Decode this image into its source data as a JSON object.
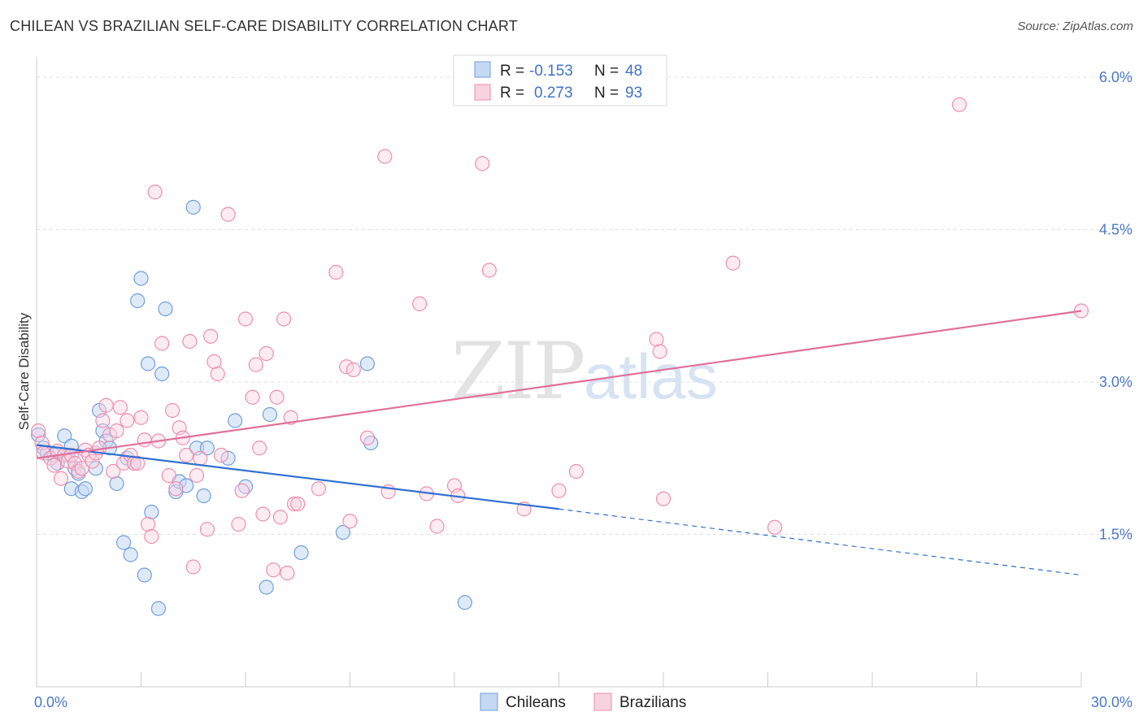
{
  "title": "CHILEAN VS BRAZILIAN SELF-CARE DISABILITY CORRELATION CHART",
  "source": "Source: ZipAtlas.com",
  "watermark": {
    "part1": "ZIP",
    "part2": "atlas"
  },
  "legend": {
    "rows": [
      {
        "r_label": "R =",
        "r_value": "-0.153",
        "n_label": "N =",
        "n_value": "48"
      },
      {
        "r_label": "R =",
        "r_value": "0.273",
        "n_label": "N =",
        "n_value": "93"
      }
    ]
  },
  "colors": {
    "chileans": "#6f9ee0",
    "chileans_fill": "#c5d8f4",
    "chileans_line": "#2f6fd0",
    "brazilians": "#ee8eb0",
    "brazilians_fill": "#f9d2e0",
    "brazilians_line": "#e0709a"
  },
  "chart_data": {
    "type": "scatter",
    "title": "CHILEAN VS BRAZILIAN SELF-CARE DISABILITY CORRELATION CHART",
    "xlabel": "",
    "ylabel": "Self-Care Disability",
    "xlim": [
      0,
      30
    ],
    "ylim": [
      0,
      6.2
    ],
    "x_tick_labels": [
      {
        "value": 0,
        "label": "0.0%"
      },
      {
        "value": 30,
        "label": "30.0%"
      }
    ],
    "y_tick_labels": [
      {
        "value": 1.5,
        "label": "1.5%"
      },
      {
        "value": 3.0,
        "label": "3.0%"
      },
      {
        "value": 4.5,
        "label": "4.5%"
      },
      {
        "value": 6.0,
        "label": "6.0%"
      }
    ],
    "grid": true,
    "legend_position": "top-center",
    "series": [
      {
        "name": "Chileans",
        "r": -0.153,
        "n": 48,
        "trend": {
          "x0": 0,
          "y0": 2.38,
          "x1": 15,
          "y1": 1.75,
          "dashed_to_x": 30,
          "dashed_to_y": 1.1
        },
        "points": [
          [
            0.05,
            2.48
          ],
          [
            0.2,
            2.35
          ],
          [
            0.3,
            2.3
          ],
          [
            0.5,
            2.28
          ],
          [
            0.6,
            2.2
          ],
          [
            0.8,
            2.47
          ],
          [
            0.9,
            2.28
          ],
          [
            1.0,
            2.37
          ],
          [
            1.0,
            1.95
          ],
          [
            1.1,
            2.15
          ],
          [
            1.2,
            2.1
          ],
          [
            1.3,
            1.92
          ],
          [
            1.4,
            1.95
          ],
          [
            1.7,
            2.15
          ],
          [
            1.8,
            2.72
          ],
          [
            1.9,
            2.52
          ],
          [
            2.0,
            2.42
          ],
          [
            2.1,
            2.35
          ],
          [
            2.3,
            2.0
          ],
          [
            2.5,
            1.42
          ],
          [
            2.6,
            2.25
          ],
          [
            2.7,
            1.3
          ],
          [
            2.8,
            2.2
          ],
          [
            2.9,
            3.8
          ],
          [
            3.0,
            4.02
          ],
          [
            3.1,
            1.1
          ],
          [
            3.2,
            3.18
          ],
          [
            3.3,
            1.72
          ],
          [
            3.5,
            0.77
          ],
          [
            3.6,
            3.08
          ],
          [
            3.7,
            3.72
          ],
          [
            4.0,
            1.92
          ],
          [
            4.1,
            2.02
          ],
          [
            4.3,
            1.98
          ],
          [
            4.5,
            4.72
          ],
          [
            4.6,
            2.35
          ],
          [
            4.8,
            1.88
          ],
          [
            4.9,
            2.35
          ],
          [
            5.5,
            2.25
          ],
          [
            5.7,
            2.62
          ],
          [
            6.0,
            1.97
          ],
          [
            6.7,
            2.68
          ],
          [
            6.6,
            0.98
          ],
          [
            7.6,
            1.32
          ],
          [
            8.8,
            1.52
          ],
          [
            9.5,
            3.18
          ],
          [
            9.6,
            2.4
          ],
          [
            12.3,
            0.83
          ]
        ]
      },
      {
        "name": "Brazilians",
        "r": 0.273,
        "n": 93,
        "trend": {
          "x0": 0,
          "y0": 2.25,
          "x1": 30,
          "y1": 3.7
        },
        "points": [
          [
            0.05,
            2.52
          ],
          [
            0.15,
            2.4
          ],
          [
            0.2,
            2.3
          ],
          [
            0.4,
            2.25
          ],
          [
            0.5,
            2.18
          ],
          [
            0.6,
            2.32
          ],
          [
            0.7,
            2.05
          ],
          [
            0.8,
            2.28
          ],
          [
            0.9,
            2.22
          ],
          [
            1.0,
            2.28
          ],
          [
            1.1,
            2.2
          ],
          [
            1.2,
            2.12
          ],
          [
            1.3,
            2.15
          ],
          [
            1.4,
            2.33
          ],
          [
            1.5,
            2.28
          ],
          [
            1.6,
            2.22
          ],
          [
            1.7,
            2.3
          ],
          [
            1.8,
            2.35
          ],
          [
            1.9,
            2.62
          ],
          [
            2.0,
            2.77
          ],
          [
            2.1,
            2.48
          ],
          [
            2.2,
            2.12
          ],
          [
            2.3,
            2.52
          ],
          [
            2.4,
            2.75
          ],
          [
            2.5,
            2.2
          ],
          [
            2.6,
            2.62
          ],
          [
            2.7,
            2.28
          ],
          [
            2.8,
            2.2
          ],
          [
            2.9,
            2.2
          ],
          [
            3.0,
            2.65
          ],
          [
            3.1,
            2.43
          ],
          [
            3.2,
            1.6
          ],
          [
            3.3,
            1.48
          ],
          [
            3.4,
            4.87
          ],
          [
            3.5,
            2.42
          ],
          [
            3.6,
            3.38
          ],
          [
            3.8,
            2.08
          ],
          [
            3.9,
            2.72
          ],
          [
            4.0,
            1.95
          ],
          [
            4.1,
            2.55
          ],
          [
            4.2,
            2.45
          ],
          [
            4.3,
            2.28
          ],
          [
            4.4,
            3.4
          ],
          [
            4.5,
            1.18
          ],
          [
            4.6,
            2.08
          ],
          [
            4.7,
            2.25
          ],
          [
            4.9,
            1.55
          ],
          [
            5.0,
            3.45
          ],
          [
            5.1,
            3.2
          ],
          [
            5.2,
            3.08
          ],
          [
            5.3,
            2.28
          ],
          [
            5.5,
            4.65
          ],
          [
            5.8,
            1.6
          ],
          [
            5.9,
            1.93
          ],
          [
            6.0,
            3.62
          ],
          [
            6.2,
            2.85
          ],
          [
            6.3,
            3.17
          ],
          [
            6.4,
            2.35
          ],
          [
            6.5,
            1.7
          ],
          [
            6.6,
            3.28
          ],
          [
            6.8,
            1.15
          ],
          [
            6.9,
            2.85
          ],
          [
            7.0,
            1.67
          ],
          [
            7.1,
            3.62
          ],
          [
            7.2,
            1.12
          ],
          [
            7.3,
            2.65
          ],
          [
            7.4,
            1.8
          ],
          [
            7.5,
            1.8
          ],
          [
            8.1,
            1.95
          ],
          [
            8.6,
            4.08
          ],
          [
            8.9,
            3.15
          ],
          [
            9.0,
            1.63
          ],
          [
            9.1,
            3.12
          ],
          [
            9.5,
            2.45
          ],
          [
            10.0,
            5.22
          ],
          [
            10.1,
            1.92
          ],
          [
            11.0,
            3.77
          ],
          [
            11.2,
            1.9
          ],
          [
            11.5,
            1.58
          ],
          [
            12.0,
            1.98
          ],
          [
            12.1,
            1.88
          ],
          [
            12.8,
            5.15
          ],
          [
            13.0,
            4.1
          ],
          [
            14.0,
            1.75
          ],
          [
            15.0,
            1.93
          ],
          [
            15.5,
            2.12
          ],
          [
            17.8,
            3.42
          ],
          [
            17.9,
            3.3
          ],
          [
            18.0,
            1.85
          ],
          [
            20.0,
            4.17
          ],
          [
            21.2,
            1.57
          ],
          [
            26.5,
            5.73
          ],
          [
            30.0,
            3.7
          ]
        ]
      }
    ]
  }
}
